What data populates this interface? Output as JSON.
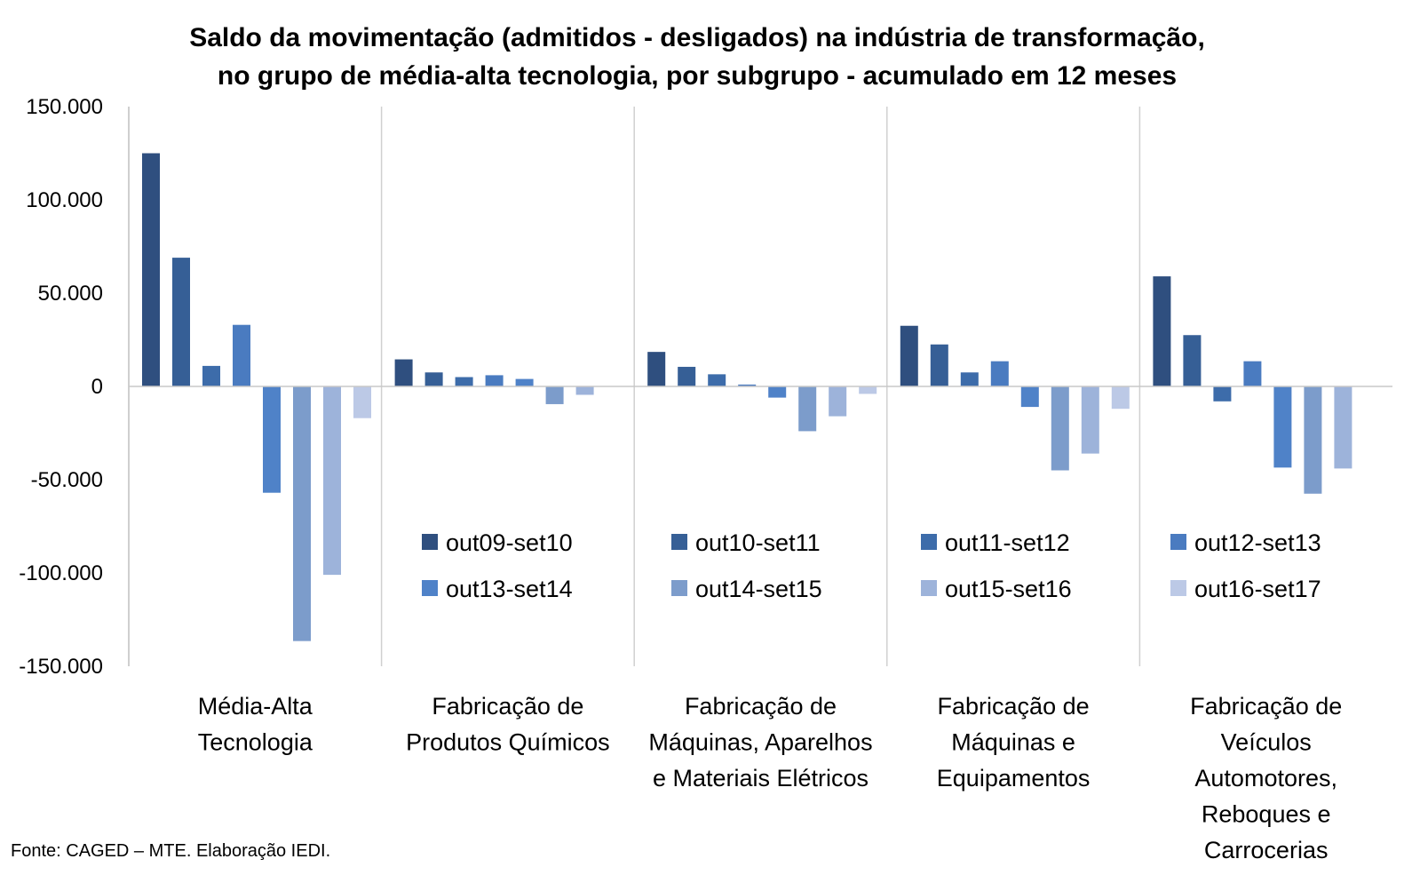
{
  "chart_data": {
    "type": "bar",
    "title": [
      "Saldo da movimentação (admitidos - desligados) na indústria de transformação,",
      "no grupo de média-alta tecnologia, por subgrupo - acumulado em 12 meses"
    ],
    "categories": [
      [
        "Média-Alta",
        "Tecnologia"
      ],
      [
        "Fabricação de",
        "Produtos Químicos"
      ],
      [
        "Fabricação de",
        "Máquinas, Aparelhos",
        "e Materiais Elétricos"
      ],
      [
        "Fabricação de",
        "Máquinas e",
        "Equipamentos"
      ],
      [
        "Fabricação de",
        "Veículos",
        "Automotores,",
        "Reboques e",
        "Carrocerias"
      ]
    ],
    "series": [
      {
        "name": "out09-set10",
        "color": "#2F4F7F",
        "values": [
          125000,
          14500,
          18500,
          32500,
          59000
        ]
      },
      {
        "name": "out10-set11",
        "color": "#365F96",
        "values": [
          69000,
          7500,
          10500,
          22500,
          27500
        ]
      },
      {
        "name": "out11-set12",
        "color": "#3D6CAA",
        "values": [
          11000,
          5000,
          6500,
          7500,
          -8000
        ]
      },
      {
        "name": "out12-set13",
        "color": "#4A7BC0",
        "values": [
          33000,
          6000,
          1000,
          13500,
          13500
        ]
      },
      {
        "name": "out13-set14",
        "color": "#4F82C8",
        "values": [
          -57000,
          4000,
          -6000,
          -11000,
          -43500
        ]
      },
      {
        "name": "out14-set15",
        "color": "#7C9CCB",
        "values": [
          -136500,
          -9500,
          -24000,
          -45000,
          -57500
        ]
      },
      {
        "name": "out15-set16",
        "color": "#9DB3DA",
        "values": [
          -101000,
          -4500,
          -16000,
          -36000,
          -44000
        ]
      },
      {
        "name": "out16-set17",
        "color": "#BCC9E6",
        "values": [
          -17000,
          null,
          -4000,
          -12000,
          null
        ]
      }
    ],
    "ylim": [
      -150000,
      150000
    ],
    "yticks": [
      150000,
      100000,
      50000,
      0,
      -50000,
      -100000,
      -150000
    ],
    "ytick_labels": [
      "150.000",
      "100.000",
      "50.000",
      "0",
      "-50.000",
      "-100.000",
      "-150.000"
    ],
    "legend_position": "inside-bottom",
    "grid": false
  },
  "source": "Fonte: CAGED – MTE. Elaboração IEDI."
}
